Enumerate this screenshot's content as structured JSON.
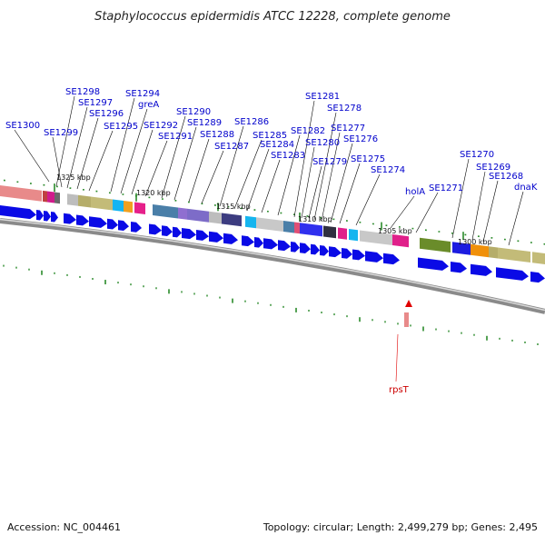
{
  "title": "Staphylococcus epidermidis ATCC 12228, complete genome",
  "footer": {
    "accession": "Accession: NC_004461",
    "topology": "Topology: circular; Length: 2,499,279 bp; Genes: 2,495"
  },
  "scale_labels": [
    "1325 kbp",
    "1320 kbp",
    "1315 kbp",
    "1310 kbp",
    "1305 kbp",
    "1300 kbp"
  ],
  "gene_labels": [
    "SE1298",
    "SE1297",
    "SE1296",
    "SE1295",
    "SE1300",
    "SE1299",
    "SE1294",
    "greA",
    "SE1292",
    "SE1291",
    "SE1290",
    "SE1289",
    "SE1288",
    "SE1287",
    "SE1286",
    "SE1285",
    "SE1284",
    "SE1283",
    "SE1282",
    "SE1281",
    "SE1280",
    "SE1279",
    "SE1278",
    "SE1277",
    "SE1276",
    "SE1275",
    "SE1274",
    "holA",
    "SE1271",
    "SE1270",
    "SE1269",
    "SE1268",
    "dnaK"
  ],
  "feature_label": "rpsT",
  "colors": {
    "arrow": "#0a0ae6",
    "label": "#0000cc",
    "tick": "#2a8a2a",
    "backbone": "#888888",
    "feature": "#e00000"
  }
}
